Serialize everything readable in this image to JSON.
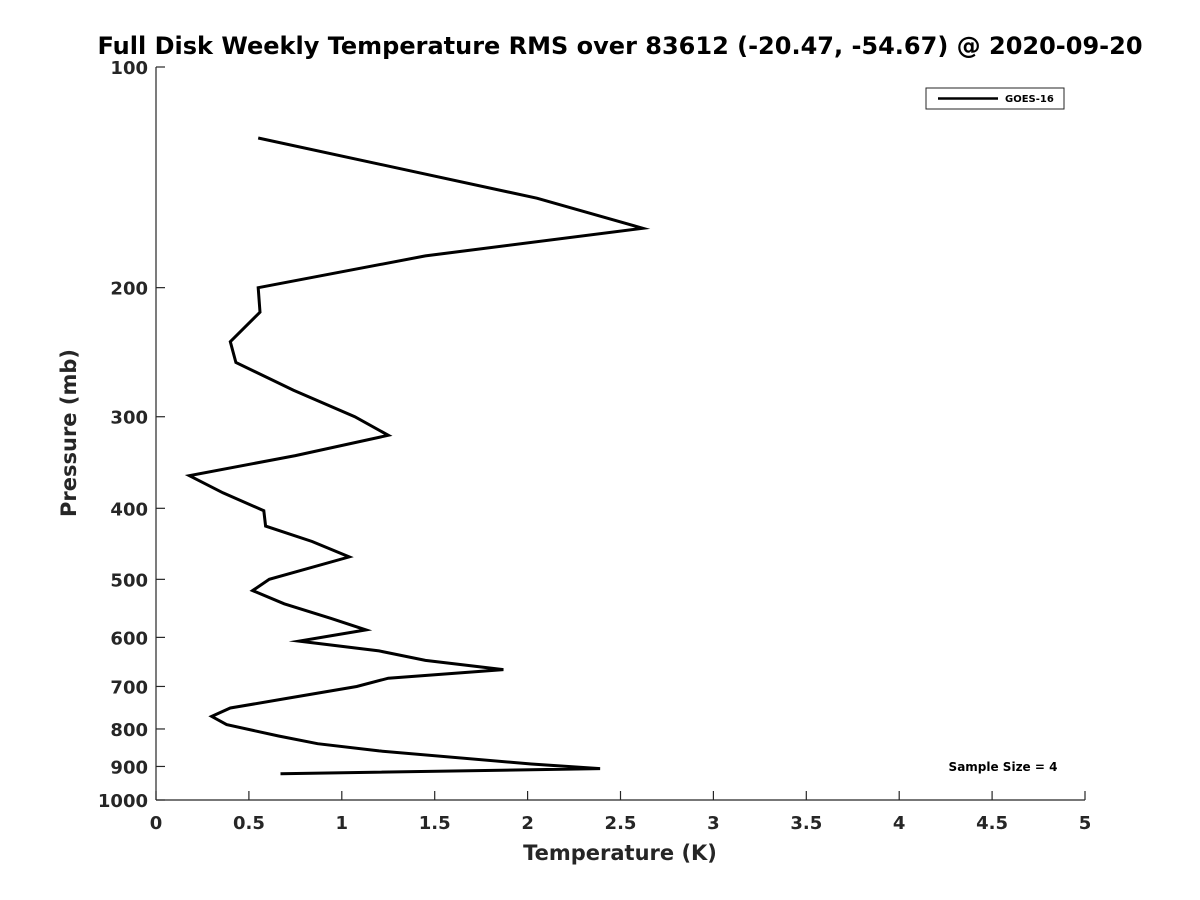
{
  "chart_data": {
    "type": "line",
    "title": "Full Disk Weekly Temperature RMS over 83612 (-20.47, -54.67) @ 2020-09-20",
    "xlabel": "Temperature (K)",
    "ylabel": "Pressure (mb)",
    "xlim": [
      0,
      5
    ],
    "ylim": [
      100,
      1000
    ],
    "y_scale": "log",
    "y_reversed": true,
    "grid": false,
    "legend_position": "top-right",
    "x_ticks": [
      "0",
      "0.5",
      "1",
      "1.5",
      "2",
      "2.5",
      "3",
      "3.5",
      "4",
      "4.5",
      "5"
    ],
    "y_ticks": [
      "100",
      "200",
      "300",
      "400",
      "500",
      "600",
      "700",
      "800",
      "900",
      "1000"
    ],
    "annotation": "Sample Size = 4",
    "series": [
      {
        "name": "GOES-16",
        "color": "#000000",
        "points": [
          {
            "x": 0.55,
            "y": 125
          },
          {
            "x": 2.05,
            "y": 151
          },
          {
            "x": 2.62,
            "y": 166
          },
          {
            "x": 1.45,
            "y": 181
          },
          {
            "x": 0.55,
            "y": 200
          },
          {
            "x": 0.56,
            "y": 216
          },
          {
            "x": 0.4,
            "y": 237
          },
          {
            "x": 0.43,
            "y": 253
          },
          {
            "x": 0.74,
            "y": 276
          },
          {
            "x": 1.07,
            "y": 300
          },
          {
            "x": 1.25,
            "y": 318
          },
          {
            "x": 0.75,
            "y": 339
          },
          {
            "x": 0.18,
            "y": 361
          },
          {
            "x": 0.36,
            "y": 381
          },
          {
            "x": 0.58,
            "y": 403
          },
          {
            "x": 0.59,
            "y": 423
          },
          {
            "x": 0.84,
            "y": 444
          },
          {
            "x": 1.04,
            "y": 466
          },
          {
            "x": 0.61,
            "y": 500
          },
          {
            "x": 0.52,
            "y": 518
          },
          {
            "x": 0.69,
            "y": 540
          },
          {
            "x": 0.94,
            "y": 565
          },
          {
            "x": 1.13,
            "y": 586
          },
          {
            "x": 0.77,
            "y": 607
          },
          {
            "x": 1.2,
            "y": 626
          },
          {
            "x": 1.45,
            "y": 645
          },
          {
            "x": 1.87,
            "y": 664
          },
          {
            "x": 1.25,
            "y": 682
          },
          {
            "x": 1.08,
            "y": 700
          },
          {
            "x": 0.7,
            "y": 727
          },
          {
            "x": 0.4,
            "y": 749
          },
          {
            "x": 0.3,
            "y": 769
          },
          {
            "x": 0.38,
            "y": 789
          },
          {
            "x": 0.66,
            "y": 818
          },
          {
            "x": 0.87,
            "y": 838
          },
          {
            "x": 1.2,
            "y": 857
          },
          {
            "x": 2.02,
            "y": 893
          },
          {
            "x": 2.39,
            "y": 906
          },
          {
            "x": 0.67,
            "y": 921
          }
        ]
      }
    ]
  }
}
